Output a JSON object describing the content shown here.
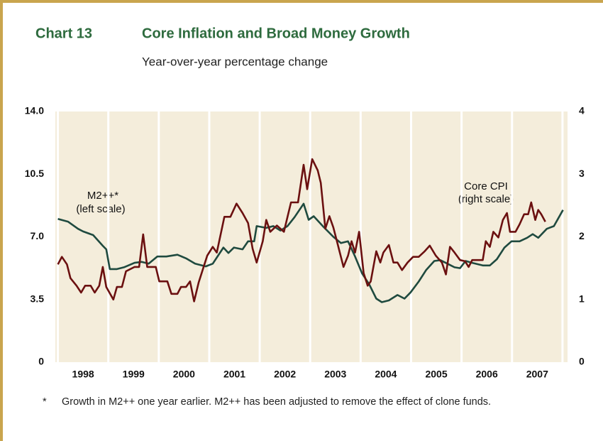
{
  "chart_data": {
    "type": "line",
    "title_number": "Chart 13",
    "title": "Core Inflation and Broad Money Growth",
    "subtitle": "Year-over-year percentage change",
    "xlim": [
      1997.95,
      2008.1
    ],
    "xticks": [
      {
        "value": 1998.5,
        "label": "1998"
      },
      {
        "value": 1999.5,
        "label": "1999"
      },
      {
        "value": 2000.5,
        "label": "2000"
      },
      {
        "value": 2001.5,
        "label": "2001"
      },
      {
        "value": 2002.5,
        "label": "2002"
      },
      {
        "value": 2003.5,
        "label": "2003"
      },
      {
        "value": 2004.5,
        "label": "2004"
      },
      {
        "value": 2005.5,
        "label": "2005"
      },
      {
        "value": 2006.5,
        "label": "2006"
      },
      {
        "value": 2007.5,
        "label": "2007"
      }
    ],
    "xgrid": [
      1998,
      1999,
      2000,
      2001,
      2002,
      2003,
      2004,
      2005,
      2006,
      2007,
      2008
    ],
    "ylim": [
      0,
      14
    ],
    "yticks": [
      0,
      3.5,
      {
        "value": 7,
        "label": "7.0"
      },
      10.5,
      {
        "value": 14,
        "label": "14.0"
      }
    ],
    "y2lim": [
      0,
      4
    ],
    "y2ticks": [
      0,
      1,
      2,
      3,
      4
    ],
    "grid": true,
    "series": [
      {
        "name": "M2++*",
        "name_note": "(left scale)",
        "color": "#1f4a3f",
        "axis": "y",
        "x": [
          1998.0,
          1998.2,
          1998.4,
          1998.5,
          1998.7,
          1998.89,
          1998.96,
          1999.03,
          1999.17,
          1999.31,
          1999.52,
          1999.66,
          1999.8,
          1999.97,
          2000.15,
          2000.37,
          2000.54,
          2000.72,
          2000.93,
          2001.07,
          2001.28,
          2001.38,
          2001.49,
          2001.66,
          2001.77,
          2001.89,
          2001.94,
          2002.13,
          2002.27,
          2002.41,
          2002.55,
          2002.69,
          2002.87,
          2002.97,
          2003.07,
          2003.25,
          2003.46,
          2003.61,
          2003.75,
          2003.89,
          2004.03,
          2004.17,
          2004.31,
          2004.42,
          2004.56,
          2004.73,
          2004.87,
          2004.99,
          2005.15,
          2005.3,
          2005.46,
          2005.58,
          2005.72,
          2005.86,
          2005.97,
          2006.08,
          2006.21,
          2006.42,
          2006.56,
          2006.7,
          2006.85,
          2006.99,
          2007.15,
          2007.3,
          2007.41,
          2007.52,
          2007.69,
          2007.83,
          2008.01
        ],
        "values": [
          8.0,
          7.85,
          7.45,
          7.3,
          7.1,
          6.5,
          6.3,
          5.2,
          5.2,
          5.3,
          5.55,
          5.6,
          5.5,
          5.9,
          5.9,
          6.0,
          5.8,
          5.5,
          5.35,
          5.5,
          6.4,
          6.1,
          6.4,
          6.3,
          6.75,
          6.75,
          7.6,
          7.5,
          7.6,
          7.35,
          7.6,
          8.1,
          8.85,
          7.95,
          8.15,
          7.6,
          7.0,
          6.65,
          6.75,
          5.9,
          4.95,
          4.35,
          3.55,
          3.35,
          3.45,
          3.75,
          3.55,
          3.9,
          4.5,
          5.15,
          5.65,
          5.7,
          5.5,
          5.3,
          5.25,
          5.65,
          5.55,
          5.4,
          5.4,
          5.75,
          6.4,
          6.75,
          6.75,
          6.95,
          7.15,
          6.95,
          7.45,
          7.6,
          8.5
        ]
      },
      {
        "name": "Core CPI",
        "name_note": "(right scale)",
        "color": "#6b1010",
        "axis": "y2",
        "x": [
          1998.0,
          1998.08,
          1998.18,
          1998.25,
          1998.37,
          1998.46,
          1998.54,
          1998.65,
          1998.73,
          1998.82,
          1998.89,
          1998.96,
          1999.1,
          1999.17,
          1999.27,
          1999.35,
          1999.52,
          1999.61,
          1999.69,
          1999.77,
          1999.94,
          2000.01,
          2000.17,
          2000.25,
          2000.37,
          2000.44,
          2000.54,
          2000.62,
          2000.7,
          2000.79,
          2000.96,
          2001.07,
          2001.15,
          2001.3,
          2001.42,
          2001.54,
          2001.66,
          2001.77,
          2001.86,
          2001.94,
          2002.06,
          2002.13,
          2002.21,
          2002.34,
          2002.48,
          2002.62,
          2002.76,
          2002.87,
          2002.94,
          2003.04,
          2003.15,
          2003.21,
          2003.3,
          2003.38,
          2003.46,
          2003.55,
          2003.66,
          2003.75,
          2003.82,
          2003.89,
          2003.97,
          2004.06,
          2004.14,
          2004.2,
          2004.31,
          2004.39,
          2004.45,
          2004.56,
          2004.65,
          2004.73,
          2004.82,
          2004.93,
          2005.04,
          2005.15,
          2005.27,
          2005.37,
          2005.49,
          2005.61,
          2005.69,
          2005.77,
          2005.86,
          2005.97,
          2006.07,
          2006.14,
          2006.21,
          2006.42,
          2006.48,
          2006.56,
          2006.63,
          2006.73,
          2006.82,
          2006.9,
          2006.96,
          2007.07,
          2007.15,
          2007.24,
          2007.32,
          2007.38,
          2007.46,
          2007.52,
          2007.58,
          2007.66
        ],
        "values": [
          1.56,
          1.68,
          1.56,
          1.34,
          1.22,
          1.11,
          1.22,
          1.22,
          1.11,
          1.22,
          1.52,
          1.2,
          1.0,
          1.2,
          1.2,
          1.45,
          1.52,
          1.52,
          2.04,
          1.52,
          1.52,
          1.29,
          1.29,
          1.09,
          1.09,
          1.2,
          1.2,
          1.29,
          0.97,
          1.27,
          1.7,
          1.84,
          1.75,
          2.32,
          2.32,
          2.53,
          2.38,
          2.22,
          1.81,
          1.59,
          1.93,
          2.27,
          2.08,
          2.18,
          2.08,
          2.55,
          2.55,
          3.15,
          2.76,
          3.24,
          3.06,
          2.86,
          2.13,
          2.33,
          2.15,
          1.87,
          1.52,
          1.7,
          1.93,
          1.75,
          2.08,
          1.42,
          1.22,
          1.29,
          1.77,
          1.59,
          1.75,
          1.87,
          1.59,
          1.59,
          1.47,
          1.59,
          1.68,
          1.68,
          1.77,
          1.86,
          1.7,
          1.59,
          1.4,
          1.84,
          1.75,
          1.63,
          1.61,
          1.52,
          1.63,
          1.63,
          1.93,
          1.84,
          2.08,
          1.99,
          2.27,
          2.38,
          2.08,
          2.08,
          2.2,
          2.36,
          2.36,
          2.55,
          2.27,
          2.43,
          2.36,
          2.24
        ]
      }
    ],
    "footnote_marker": "*",
    "footnote": "Growth in M2++ one year earlier. M2++ has been adjusted to remove the effect of clone funds."
  }
}
